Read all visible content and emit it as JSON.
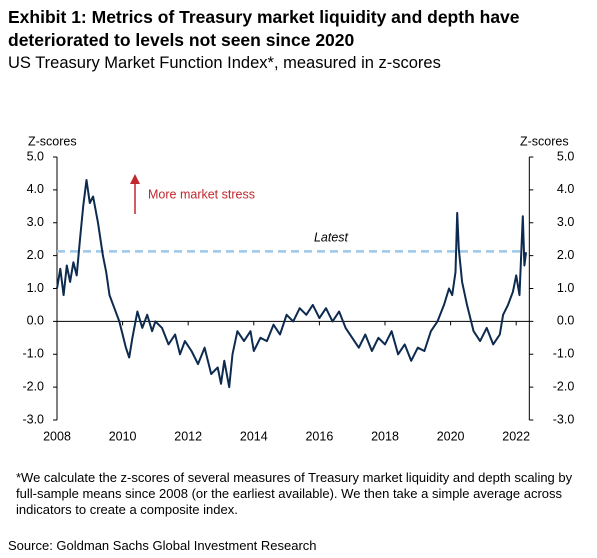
{
  "chart_data": {
    "type": "line",
    "title": "Exhibit 1: Metrics of Treasury market liquidity and depth have deteriorated to levels not seen since 2020",
    "subtitle": "US Treasury Market Function Index*, measured in z-scores",
    "y_label": "Z-scores",
    "y2_label": "Z-scores",
    "annotation": "More market stress",
    "annotation_color": "#c0282d",
    "reference_line": {
      "value": 2.13,
      "label": "Latest",
      "color": "#9cc8ea"
    },
    "footnote": "*We calculate the z-scores of several measures of Treasury market liquidity and depth scaling by full-sample means since 2008 (or the earliest available). We then take a simple average across indicators to create a composite index.",
    "source": "Source: Goldman Sachs Global Investment Research",
    "xlim": [
      2008,
      2022.4
    ],
    "xticks": [
      2008,
      2010,
      2012,
      2014,
      2016,
      2018,
      2020,
      2022
    ],
    "ylim": [
      -3,
      5
    ],
    "yticks": [
      {
        "value": 5,
        "label": "5.0"
      },
      {
        "value": 4,
        "label": "4.0"
      },
      {
        "value": 3,
        "label": "3.0"
      },
      {
        "value": 2,
        "label": "2.0"
      },
      {
        "value": 1,
        "label": "1.0"
      },
      {
        "value": 0,
        "label": "0.0"
      },
      {
        "value": -1,
        "label": "-1.0"
      },
      {
        "value": -2,
        "label": "-2.0"
      },
      {
        "value": -3,
        "label": "-3.0"
      }
    ],
    "y2lim": [
      -3,
      5
    ],
    "y2ticks": [
      {
        "value": 5,
        "label": "5.0"
      },
      {
        "value": 4,
        "label": "4.0"
      },
      {
        "value": 3,
        "label": "3.0"
      },
      {
        "value": 2,
        "label": "2.0"
      },
      {
        "value": 1,
        "label": "1.0"
      },
      {
        "value": 0,
        "label": "0.0"
      },
      {
        "value": -1,
        "label": "-1.0"
      },
      {
        "value": -2,
        "label": "-2.0"
      },
      {
        "value": -3,
        "label": "-3.0"
      }
    ],
    "grid": false,
    "x": [
      2008.0,
      2008.1,
      2008.2,
      2008.3,
      2008.4,
      2008.5,
      2008.6,
      2008.7,
      2008.8,
      2008.9,
      2009.0,
      2009.1,
      2009.25,
      2009.4,
      2009.5,
      2009.6,
      2009.75,
      2009.9,
      2010.0,
      2010.1,
      2010.2,
      2010.3,
      2010.45,
      2010.6,
      2010.75,
      2010.9,
      2011.0,
      2011.2,
      2011.4,
      2011.6,
      2011.75,
      2011.9,
      2012.1,
      2012.3,
      2012.5,
      2012.7,
      2012.9,
      2013.0,
      2013.1,
      2013.25,
      2013.35,
      2013.5,
      2013.7,
      2013.9,
      2014.0,
      2014.2,
      2014.4,
      2014.6,
      2014.8,
      2015.0,
      2015.2,
      2015.4,
      2015.6,
      2015.8,
      2016.0,
      2016.2,
      2016.4,
      2016.6,
      2016.8,
      2017.0,
      2017.2,
      2017.4,
      2017.6,
      2017.8,
      2018.0,
      2018.2,
      2018.4,
      2018.6,
      2018.8,
      2019.0,
      2019.2,
      2019.4,
      2019.6,
      2019.8,
      2019.95,
      2020.05,
      2020.15,
      2020.2,
      2020.25,
      2020.35,
      2020.5,
      2020.7,
      2020.9,
      2021.1,
      2021.3,
      2021.5,
      2021.6,
      2021.75,
      2021.9,
      2022.0,
      2022.1,
      2022.2,
      2022.25,
      2022.3
    ],
    "series": [
      {
        "name": "US Treasury Market Function Index",
        "color": "#0d2a4f",
        "values": [
          1.0,
          1.6,
          0.8,
          1.7,
          1.2,
          1.8,
          1.4,
          2.5,
          3.5,
          4.3,
          3.6,
          3.8,
          3.0,
          2.0,
          1.5,
          0.8,
          0.4,
          0.0,
          -0.4,
          -0.8,
          -1.1,
          -0.5,
          0.3,
          -0.2,
          0.2,
          -0.3,
          0.0,
          -0.2,
          -0.7,
          -0.4,
          -1.0,
          -0.6,
          -0.9,
          -1.3,
          -0.8,
          -1.6,
          -1.4,
          -1.9,
          -1.2,
          -2.0,
          -1.0,
          -0.3,
          -0.6,
          -0.3,
          -0.9,
          -0.5,
          -0.6,
          -0.1,
          -0.4,
          0.2,
          0.0,
          0.4,
          0.2,
          0.5,
          0.1,
          0.4,
          0.0,
          0.3,
          -0.2,
          -0.5,
          -0.8,
          -0.4,
          -0.9,
          -0.5,
          -0.7,
          -0.3,
          -1.0,
          -0.7,
          -1.2,
          -0.8,
          -0.9,
          -0.3,
          0.0,
          0.5,
          1.0,
          0.8,
          1.5,
          3.3,
          2.2,
          1.2,
          0.5,
          -0.3,
          -0.6,
          -0.2,
          -0.7,
          -0.4,
          0.2,
          0.5,
          0.9,
          1.4,
          0.8,
          3.2,
          1.7,
          2.1
        ]
      }
    ]
  }
}
